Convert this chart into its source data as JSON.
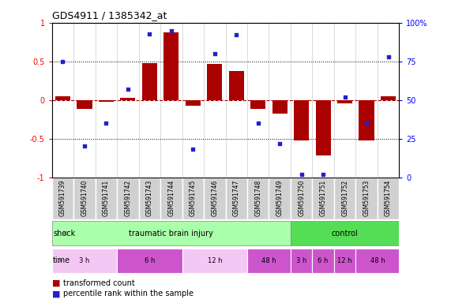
{
  "title": "GDS4911 / 1385342_at",
  "samples": [
    "GSM591739",
    "GSM591740",
    "GSM591741",
    "GSM591742",
    "GSM591743",
    "GSM591744",
    "GSM591745",
    "GSM591746",
    "GSM591747",
    "GSM591748",
    "GSM591749",
    "GSM591750",
    "GSM591751",
    "GSM591752",
    "GSM591753",
    "GSM591754"
  ],
  "red_values": [
    0.05,
    -0.12,
    -0.02,
    0.03,
    0.48,
    0.88,
    -0.07,
    0.47,
    0.38,
    -0.12,
    -0.18,
    -0.52,
    -0.72,
    -0.04,
    -0.52,
    0.05
  ],
  "blue_values": [
    0.75,
    0.2,
    0.35,
    0.57,
    0.93,
    0.95,
    0.18,
    0.8,
    0.92,
    0.35,
    0.22,
    0.02,
    0.02,
    0.52,
    0.35,
    0.78
  ],
  "shock_groups": [
    {
      "label": "traumatic brain injury",
      "start": 0,
      "end": 11,
      "color": "#90EE90"
    },
    {
      "label": "control",
      "start": 11,
      "end": 16,
      "color": "#90EE90"
    }
  ],
  "time_groups": [
    {
      "label": "3 h",
      "start": 0,
      "end": 3,
      "color": "#F0B0E8"
    },
    {
      "label": "6 h",
      "start": 3,
      "end": 6,
      "color": "#CC66CC"
    },
    {
      "label": "12 h",
      "start": 6,
      "end": 9,
      "color": "#F0B0E8"
    },
    {
      "label": "48 h",
      "start": 9,
      "end": 11,
      "color": "#CC66CC"
    },
    {
      "label": "3 h",
      "start": 11,
      "end": 12,
      "color": "#CC66CC"
    },
    {
      "label": "6 h",
      "start": 12,
      "end": 13,
      "color": "#CC66CC"
    },
    {
      "label": "12 h",
      "start": 13,
      "end": 14,
      "color": "#CC66CC"
    },
    {
      "label": "48 h",
      "start": 14,
      "end": 16,
      "color": "#CC66CC"
    }
  ],
  "red_color": "#AA0000",
  "blue_color": "#2222CC",
  "ylim": [
    -1,
    1
  ],
  "y2lim": [
    0,
    100
  ],
  "yticks": [
    -1,
    -0.5,
    0,
    0.5,
    1
  ],
  "ytick_labels": [
    "-1",
    "-0.5",
    "0",
    "0.5",
    "1"
  ],
  "y2ticks": [
    0,
    25,
    50,
    75,
    100
  ],
  "y2tick_labels": [
    "0",
    "25",
    "50",
    "75",
    "100%"
  ],
  "hlines": [
    0.5,
    -0.5
  ],
  "legend_items": [
    {
      "label": "transformed count",
      "color": "#AA0000"
    },
    {
      "label": "percentile rank within the sample",
      "color": "#2222CC"
    }
  ],
  "bg_color": "#FFFFFF",
  "plot_bg": "#FFFFFF",
  "label_bg": "#CCCCCC",
  "shock_tbi_color": "#AAFFAA",
  "shock_ctrl_color": "#44DD44",
  "time_light": "#F4B8F4",
  "time_dark": "#CC55CC"
}
